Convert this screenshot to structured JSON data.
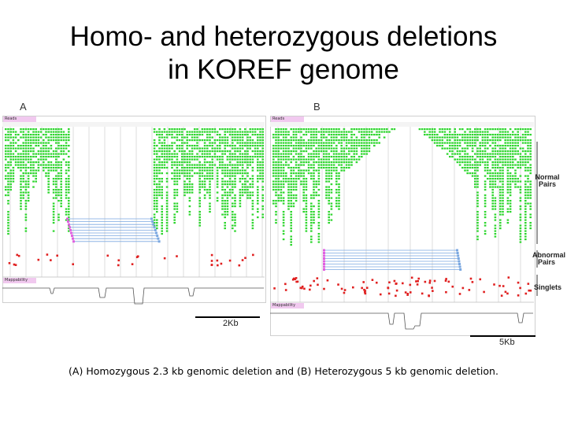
{
  "title_line1": "Homo- and heterozygous deletions",
  "title_line2": "in KOREF genome",
  "panel_a": {
    "letter": "A",
    "reads_label": "Reads",
    "mappability_label": "Mappability",
    "scale": "2Kb"
  },
  "panel_b": {
    "letter": "B",
    "reads_label": "Reads",
    "mappability_label": "Mappability",
    "scale": "5Kb"
  },
  "side_labels": {
    "normal_pairs": "Normal Pairs",
    "abnormal_pairs": "Abnormal Pairs",
    "singlets": "Singlets"
  },
  "caption": "(A) Homozygous 2.3 kb genomic deletion and (B) Heterozygous 5 kb genomic deletion.",
  "colors": {
    "normal": "#2fd62f",
    "abnormal_a": "#e060e0",
    "abnormal_b": "#7aa7e0",
    "singlet": "#e02020",
    "mappability": "#555555"
  }
}
